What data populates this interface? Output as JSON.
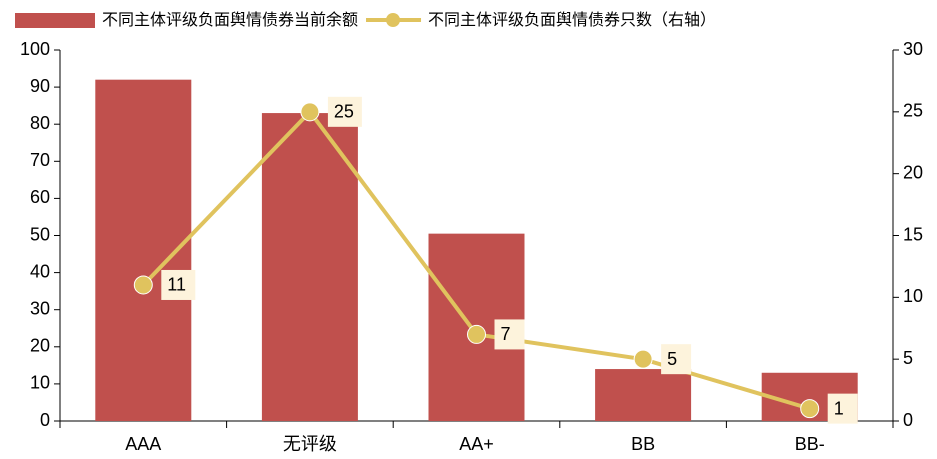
{
  "chart_data": {
    "type": "bar",
    "categories": [
      "AAA",
      "无评级",
      "AA+",
      "BB",
      "BB-"
    ],
    "series": [
      {
        "name": "不同主体评级负面舆情债券当前余额",
        "color": "#c0504d",
        "type": "bar",
        "values": [
          92,
          83,
          50.5,
          14,
          13
        ]
      },
      {
        "name": "不同主体评级负面舆情债券只数（右轴）",
        "color": "#e0c35e",
        "type": "line",
        "axis": "y2",
        "values": [
          11,
          25,
          7,
          5,
          1
        ]
      }
    ],
    "ylim": [
      0,
      100
    ],
    "yticks": [
      0,
      10,
      20,
      30,
      40,
      50,
      60,
      70,
      80,
      90,
      100
    ],
    "y2lim": [
      0,
      30
    ],
    "y2ticks": [
      0,
      5,
      10,
      15,
      20,
      25,
      30
    ],
    "grid": false,
    "legend": "top"
  }
}
